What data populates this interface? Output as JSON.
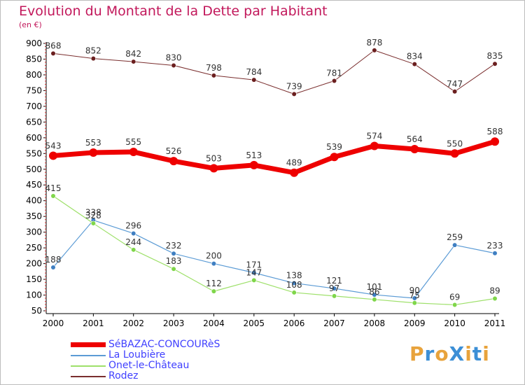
{
  "title": "Evolution du Montant de la Dette par Habitant",
  "subtitle": "(en €)",
  "logo": {
    "text": "ProXiti",
    "colors": [
      "#e8a33c",
      "#3c8fd6",
      "#e8a33c",
      "#3c8fd6",
      "#e8a33c",
      "#3c8fd6",
      "#e8a33c"
    ]
  },
  "chart_data": {
    "type": "line",
    "title": "Evolution du Montant de la Dette par Habitant",
    "subtitle": "(en €)",
    "xlabel": "",
    "ylabel": "",
    "categories": [
      "2000",
      "2001",
      "2002",
      "2003",
      "2004",
      "2005",
      "2006",
      "2007",
      "2008",
      "2009",
      "2010",
      "2011"
    ],
    "ylim": [
      50,
      900
    ],
    "yticks": [
      50,
      100,
      150,
      200,
      250,
      300,
      350,
      400,
      450,
      500,
      550,
      600,
      650,
      700,
      750,
      800,
      850,
      900
    ],
    "grid": false,
    "legend_position": "bottom-left",
    "series": [
      {
        "name": "SéBAZAC-CONCOURèS",
        "color": "#ee0000",
        "values": [
          543,
          553,
          555,
          526,
          503,
          513,
          489,
          539,
          574,
          564,
          550,
          588
        ]
      },
      {
        "name": "La Loubière",
        "color": "#5b9bd5",
        "values": [
          188,
          338,
          296,
          232,
          200,
          171,
          138,
          121,
          101,
          90,
          259,
          233
        ]
      },
      {
        "name": "Onet-le-Château",
        "color": "#9ee06a",
        "values": [
          415,
          328,
          244,
          183,
          112,
          147,
          108,
          97,
          86,
          75,
          69,
          89
        ]
      },
      {
        "name": "Rodez",
        "color": "#7a2e2e",
        "values": [
          868,
          852,
          842,
          830,
          798,
          784,
          739,
          781,
          878,
          834,
          747,
          835
        ]
      }
    ]
  }
}
